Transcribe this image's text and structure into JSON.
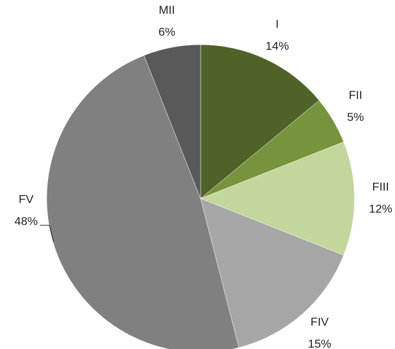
{
  "chart_data": {
    "type": "pie",
    "categories": [
      "I",
      "FII",
      "FIII",
      "FIV",
      "FV",
      "MII"
    ],
    "values": [
      14,
      5,
      12,
      15,
      48,
      6
    ],
    "value_labels": [
      "14%",
      "5%",
      "12%",
      "15%",
      "48%",
      "6%"
    ],
    "colors": [
      "#4f6228",
      "#77933c",
      "#c3d69b",
      "#a6a6a6",
      "#808080",
      "#595959"
    ]
  }
}
